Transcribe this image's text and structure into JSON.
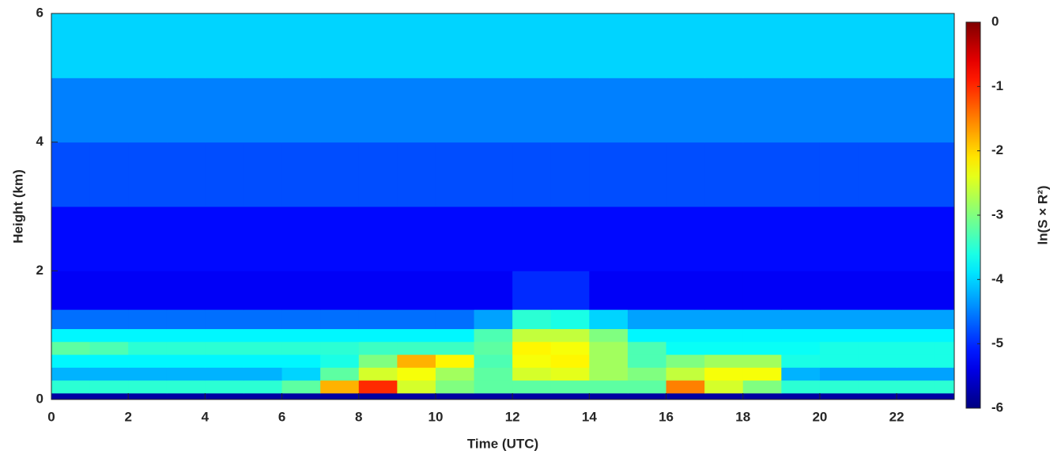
{
  "chart_data": {
    "type": "heatmap",
    "x_label": "Time (UTC)",
    "y_label": "Height (km)",
    "colorbar_label": "ln(S × R²)",
    "xlim": [
      0,
      23.5
    ],
    "xticks": [
      0,
      2,
      4,
      6,
      8,
      10,
      12,
      14,
      16,
      18,
      20,
      22
    ],
    "ylim": [
      0,
      6
    ],
    "yticks": [
      0,
      2,
      4,
      6
    ],
    "clim": [
      -6,
      0
    ],
    "cticks": [
      0,
      -1,
      -2,
      -3,
      -4,
      -5,
      -6
    ],
    "colormap": "jet",
    "x": [
      0,
      1,
      2,
      3,
      4,
      5,
      6,
      7,
      8,
      9,
      10,
      11,
      12,
      13,
      14,
      15,
      16,
      17,
      18,
      19,
      20,
      21,
      22,
      23
    ],
    "y": [
      0,
      0.1,
      0.3,
      0.5,
      0.7,
      0.9,
      1.1,
      1.4,
      2,
      3,
      4,
      5
    ],
    "z": [
      [
        -5.8,
        -5.8,
        -5.8,
        -5.8,
        -5.8,
        -5.8,
        -5.8,
        -5.8,
        -5.8,
        -5.8,
        -5.8,
        -5.8,
        -5.8,
        -5.8,
        -5.8,
        -5.8,
        -5.8,
        -5.8,
        -5.8,
        -5.8,
        -5.8,
        -5.8,
        -5.8,
        -5.8
      ],
      [
        -3.5,
        -3.5,
        -3.5,
        -3.5,
        -3.5,
        -3.5,
        -3.2,
        -1.8,
        -1,
        -2.5,
        -3,
        -3.2,
        -3.2,
        -3.2,
        -3.2,
        -3.2,
        -1.5,
        -2.5,
        -3,
        -3.5,
        -3.5,
        -3.5,
        -3.5,
        -3.5
      ],
      [
        -4.2,
        -4.2,
        -4.2,
        -4.2,
        -4.2,
        -4.2,
        -4,
        -3.2,
        -2.5,
        -2.3,
        -2.8,
        -3.2,
        -2.5,
        -2.4,
        -2.8,
        -3,
        -2.6,
        -2.3,
        -2.3,
        -4.2,
        -4.3,
        -4.3,
        -4.3,
        -4.3
      ],
      [
        -3.8,
        -3.8,
        -3.8,
        -3.8,
        -3.8,
        -3.8,
        -3.8,
        -3.6,
        -3,
        -1.8,
        -2.2,
        -3.3,
        -2.3,
        -2.2,
        -2.8,
        -3.3,
        -3,
        -2.8,
        -2.8,
        -3.6,
        -3.6,
        -3.6,
        -3.6,
        -3.6
      ],
      [
        -3.2,
        -3.3,
        -3.5,
        -3.5,
        -3.5,
        -3.5,
        -3.5,
        -3.5,
        -3.4,
        -3.4,
        -3.4,
        -3.2,
        -2.2,
        -2.3,
        -2.8,
        -3.3,
        -3.7,
        -3.7,
        -3.7,
        -3.7,
        -3.6,
        -3.6,
        -3.6,
        -3.6
      ],
      [
        -3.8,
        -3.8,
        -3.8,
        -3.8,
        -3.8,
        -3.8,
        -3.8,
        -3.8,
        -3.8,
        -3.8,
        -3.8,
        -3.3,
        -2.6,
        -2.6,
        -3,
        -3.8,
        -3.8,
        -3.8,
        -3.8,
        -3.8,
        -3.8,
        -3.8,
        -3.8,
        -3.8
      ],
      [
        -4.6,
        -4.6,
        -4.6,
        -4.6,
        -4.6,
        -4.6,
        -4.6,
        -4.6,
        -4.6,
        -4.6,
        -4.6,
        -4.3,
        -3.5,
        -3.6,
        -4,
        -4.3,
        -4.3,
        -4.3,
        -4.3,
        -4.3,
        -4.3,
        -4.3,
        -4.3,
        -4.3
      ],
      [
        -5.3,
        -5.3,
        -5.3,
        -5.3,
        -5.3,
        -5.3,
        -5.3,
        -5.3,
        -5.3,
        -5.3,
        -5.3,
        -5.3,
        -5,
        -5,
        -5.3,
        -5.3,
        -5.3,
        -5.3,
        -5.3,
        -5.3,
        -5.3,
        -5.3,
        -5.3,
        -5.3
      ],
      [
        -5.2,
        -5.2,
        -5.2,
        -5.2,
        -5.2,
        -5.2,
        -5.2,
        -5.2,
        -5.2,
        -5.2,
        -5.2,
        -5.2,
        -5.2,
        -5.2,
        -5.2,
        -5.2,
        -5.2,
        -5.2,
        -5.2,
        -5.2,
        -5.2,
        -5.2,
        -5.2,
        -5.2
      ],
      [
        -4.8,
        -4.8,
        -4.8,
        -4.8,
        -4.8,
        -4.8,
        -4.8,
        -4.8,
        -4.8,
        -4.8,
        -4.8,
        -4.8,
        -4.8,
        -4.8,
        -4.8,
        -4.8,
        -4.8,
        -4.8,
        -4.8,
        -4.8,
        -4.8,
        -4.8,
        -4.8,
        -4.8
      ],
      [
        -4.5,
        -4.5,
        -4.5,
        -4.5,
        -4.5,
        -4.5,
        -4.5,
        -4.5,
        -4.5,
        -4.5,
        -4.5,
        -4.5,
        -4.5,
        -4.5,
        -4.5,
        -4.5,
        -4.5,
        -4.5,
        -4.5,
        -4.5,
        -4.5,
        -4.5,
        -4.5,
        -4.5
      ],
      [
        -4,
        -4,
        -4,
        -4,
        -4,
        -4,
        -4,
        -4,
        -4,
        -4,
        -4,
        -4,
        -4,
        -4,
        -4,
        -4,
        -4,
        -4,
        -4,
        -4,
        -4,
        -4,
        -4,
        -4
      ]
    ]
  }
}
